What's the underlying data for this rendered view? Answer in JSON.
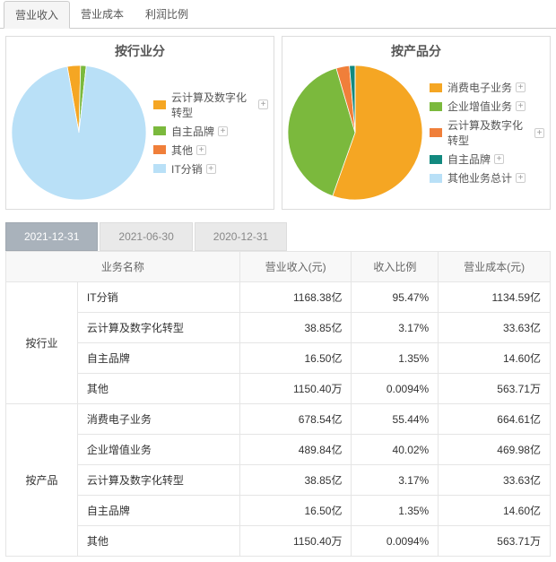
{
  "top_tabs": {
    "items": [
      {
        "label": "营业收入",
        "active": true
      },
      {
        "label": "营业成本",
        "active": false
      },
      {
        "label": "利润比例",
        "active": false
      }
    ]
  },
  "chart1": {
    "title": "按行业分",
    "type": "pie",
    "background_color": "#ffffff",
    "series": [
      {
        "label": "云计算及数字化转型",
        "value": 3.17,
        "color": "#f5a623"
      },
      {
        "label": "自主品牌",
        "value": 1.35,
        "color": "#7bb93d"
      },
      {
        "label": "其他",
        "value": 0.0094,
        "color": "#f07f3a"
      },
      {
        "label": "IT分销",
        "value": 95.47,
        "color": "#b9e0f7"
      }
    ]
  },
  "chart2": {
    "title": "按产品分",
    "type": "pie",
    "background_color": "#ffffff",
    "series": [
      {
        "label": "消费电子业务",
        "value": 55.44,
        "color": "#f5a623"
      },
      {
        "label": "企业增值业务",
        "value": 40.02,
        "color": "#7bb93d"
      },
      {
        "label": "云计算及数字化转型",
        "value": 3.17,
        "color": "#f07f3a"
      },
      {
        "label": "自主品牌",
        "value": 1.35,
        "color": "#12897f"
      },
      {
        "label": "其他业务总计",
        "value": 0.0094,
        "color": "#b9e0f7"
      }
    ]
  },
  "date_tabs": {
    "items": [
      {
        "label": "2021-12-31",
        "active": true
      },
      {
        "label": "2021-06-30",
        "active": false
      },
      {
        "label": "2020-12-31",
        "active": false
      }
    ]
  },
  "table": {
    "columns": [
      "业务名称",
      "营业收入(元)",
      "收入比例",
      "营业成本(元)"
    ],
    "groups": [
      {
        "group_label": "按行业",
        "rows": [
          {
            "name": "IT分销",
            "revenue": "1168.38亿",
            "ratio": "95.47%",
            "cost": "1134.59亿"
          },
          {
            "name": "云计算及数字化转型",
            "revenue": "38.85亿",
            "ratio": "3.17%",
            "cost": "33.63亿"
          },
          {
            "name": "自主品牌",
            "revenue": "16.50亿",
            "ratio": "1.35%",
            "cost": "14.60亿"
          },
          {
            "name": "其他",
            "revenue": "1150.40万",
            "ratio": "0.0094%",
            "cost": "563.71万"
          }
        ]
      },
      {
        "group_label": "按产品",
        "rows": [
          {
            "name": "消费电子业务",
            "revenue": "678.54亿",
            "ratio": "55.44%",
            "cost": "664.61亿"
          },
          {
            "name": "企业增值业务",
            "revenue": "489.84亿",
            "ratio": "40.02%",
            "cost": "469.98亿"
          },
          {
            "name": "云计算及数字化转型",
            "revenue": "38.85亿",
            "ratio": "3.17%",
            "cost": "33.63亿"
          },
          {
            "name": "自主品牌",
            "revenue": "16.50亿",
            "ratio": "1.35%",
            "cost": "14.60亿"
          },
          {
            "name": "其他",
            "revenue": "1150.40万",
            "ratio": "0.0094%",
            "cost": "563.71万"
          }
        ]
      }
    ]
  }
}
